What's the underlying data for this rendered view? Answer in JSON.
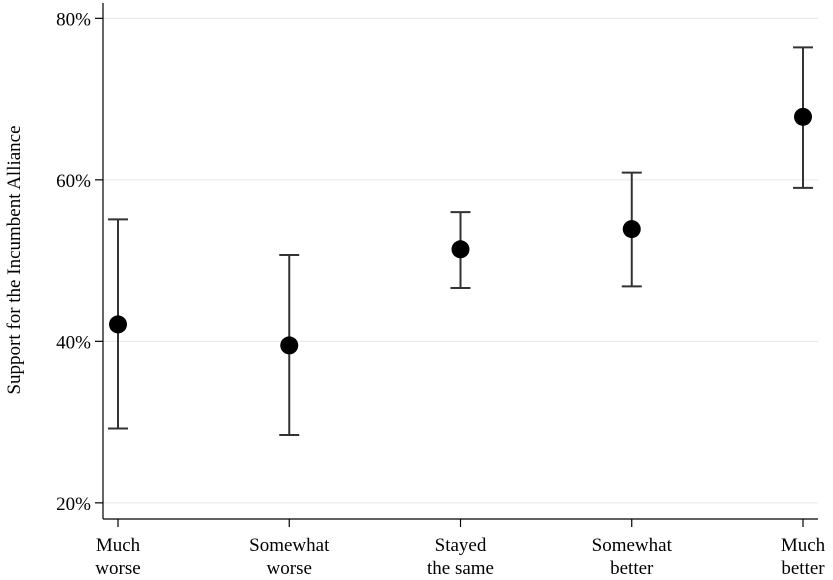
{
  "chart_data": {
    "type": "dot-errorbar",
    "y_label": "Support for the Incumbent Alliance",
    "categories": [
      [
        "Much",
        "worse"
      ],
      [
        "Somewhat",
        "worse"
      ],
      [
        "Stayed",
        "the same"
      ],
      [
        "Somewhat",
        "better"
      ],
      [
        "Much",
        "better"
      ]
    ],
    "values": [
      42.1,
      39.5,
      51.4,
      53.9,
      67.8
    ],
    "lower": [
      29.2,
      28.4,
      46.6,
      46.8,
      59.0
    ],
    "upper": [
      55.1,
      50.7,
      56.0,
      60.9,
      76.4
    ],
    "color": "#000000",
    "ylim": [
      18,
      81.9
    ],
    "yticks": [
      {
        "value": 20,
        "label": "20%"
      },
      {
        "value": 40,
        "label": "40%"
      },
      {
        "value": 60,
        "label": "60%"
      },
      {
        "value": 80,
        "label": "80%"
      }
    ],
    "grid": true
  }
}
